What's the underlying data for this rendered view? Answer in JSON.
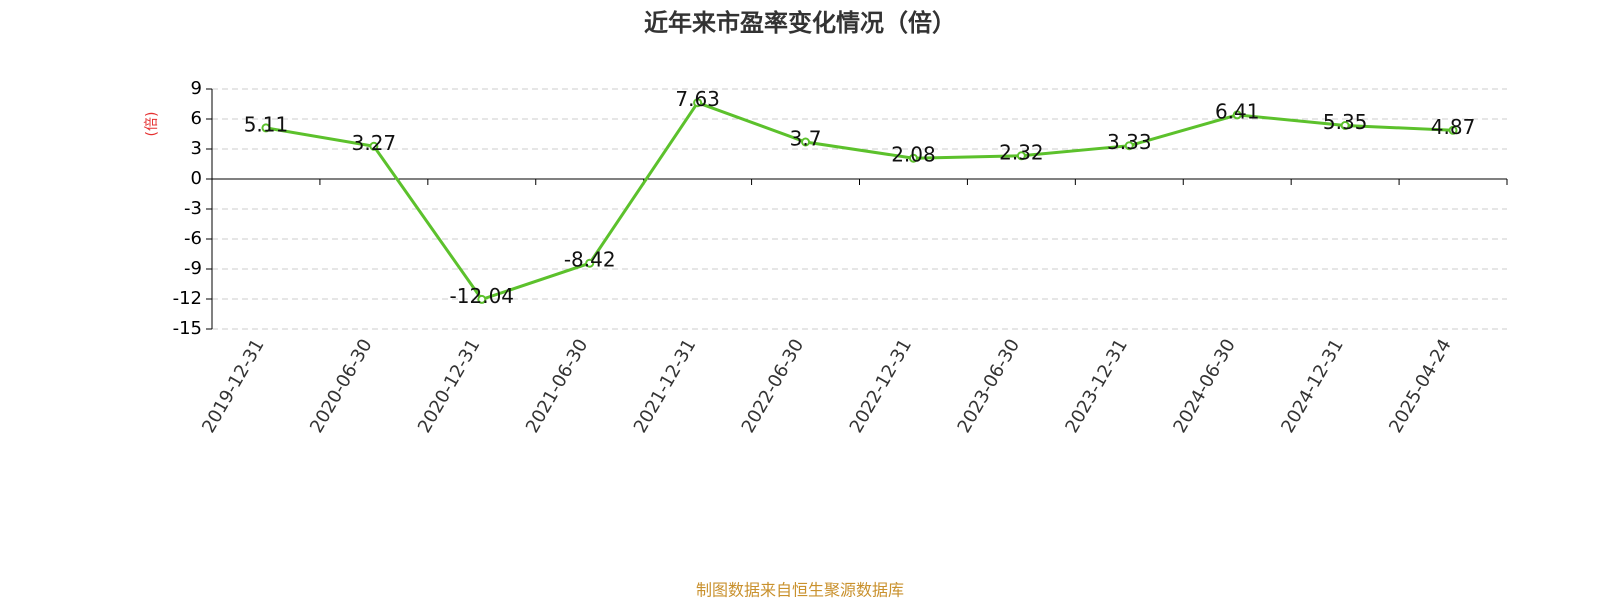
{
  "chart_data": {
    "type": "line",
    "title": "近年来市盈率变化情况（倍）",
    "y_label": "(倍)",
    "source": "制图数据来自恒生聚源数据库",
    "categories": [
      "2019-12-31",
      "2020-06-30",
      "2020-12-31",
      "2021-06-30",
      "2021-12-31",
      "2022-06-30",
      "2022-12-31",
      "2023-06-30",
      "2023-12-31",
      "2024-06-30",
      "2024-12-31",
      "2025-04-24"
    ],
    "values": [
      5.11,
      3.27,
      -12.04,
      -8.42,
      7.63,
      3.7,
      2.08,
      2.32,
      3.33,
      6.41,
      5.35,
      4.87
    ],
    "color": "#5cc12c",
    "ylim": [
      -15,
      9
    ],
    "yticks": [
      -15,
      -12,
      -9,
      -6,
      -3,
      0,
      3,
      6,
      9
    ],
    "grid": true
  }
}
